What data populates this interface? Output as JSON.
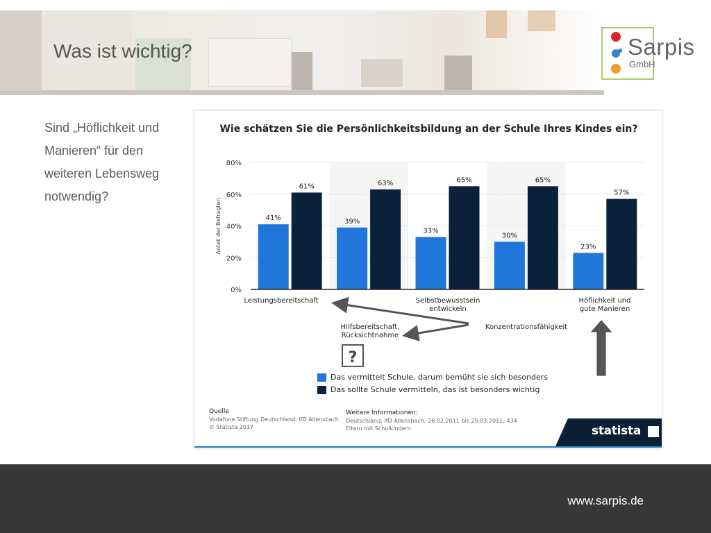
{
  "slide": {
    "title": "Was ist wichtig?",
    "question_lines": [
      "Sind „Höflichkeit und",
      "Manieren“ für den",
      "weiteren Lebensweg",
      "notwendig?"
    ],
    "footer_url": "www.sarpis.de"
  },
  "logo": {
    "name": "Sarpis",
    "sub": "GmbH",
    "colors": {
      "frame": "#a8cf6b",
      "red": "#d9262b",
      "blue": "#2f86c8",
      "orange": "#f29a2e"
    }
  },
  "colors": {
    "series1": "#2076d9",
    "series2": "#0b213b",
    "footer": "#373737",
    "arrow": "#555555"
  },
  "chart_data": {
    "type": "bar",
    "title": "Wie schätzen Sie die Persönlichkeitsbildung an der Schule Ihres Kindes ein?",
    "ylabel": "Anteil der Befragten",
    "ylim": [
      0,
      80
    ],
    "yticks": [
      "0%",
      "20%",
      "40%",
      "60%",
      "80%"
    ],
    "categories": [
      "Leistungsbereitschaft",
      "Hilfsbereitschaft, Rücksichtnahme",
      "Selbstbewusstsein entwickeln",
      "Konzentrationsfähigkeit",
      "Höflichkeit und gute Manieren"
    ],
    "series": [
      {
        "name": "Das vermittelt Schule, darum bemüht sie sich besonders",
        "values": [
          41,
          39,
          33,
          30,
          23
        ]
      },
      {
        "name": "Das sollte Schule vermitteln, das ist besonders wichtig",
        "values": [
          61,
          63,
          65,
          65,
          57
        ]
      }
    ],
    "data_labels": [
      [
        "41%",
        "39%",
        "33%",
        "30%",
        "23%"
      ],
      [
        "61%",
        "63%",
        "65%",
        "65%",
        "57%"
      ]
    ],
    "grid": true,
    "legend": "bottom",
    "source_head": "Quelle",
    "source_lines": [
      "Vodafone Stiftung Deutschland; IfD Allensbach",
      "© Statista 2017"
    ],
    "info_head": "Weitere Informationen:",
    "info_lines": [
      "Deutschland; IfD Allensbach; 26.02.2011 bis 25.03.2011; 434",
      "Eltern mit Schulkindern"
    ],
    "brand": "statista"
  }
}
